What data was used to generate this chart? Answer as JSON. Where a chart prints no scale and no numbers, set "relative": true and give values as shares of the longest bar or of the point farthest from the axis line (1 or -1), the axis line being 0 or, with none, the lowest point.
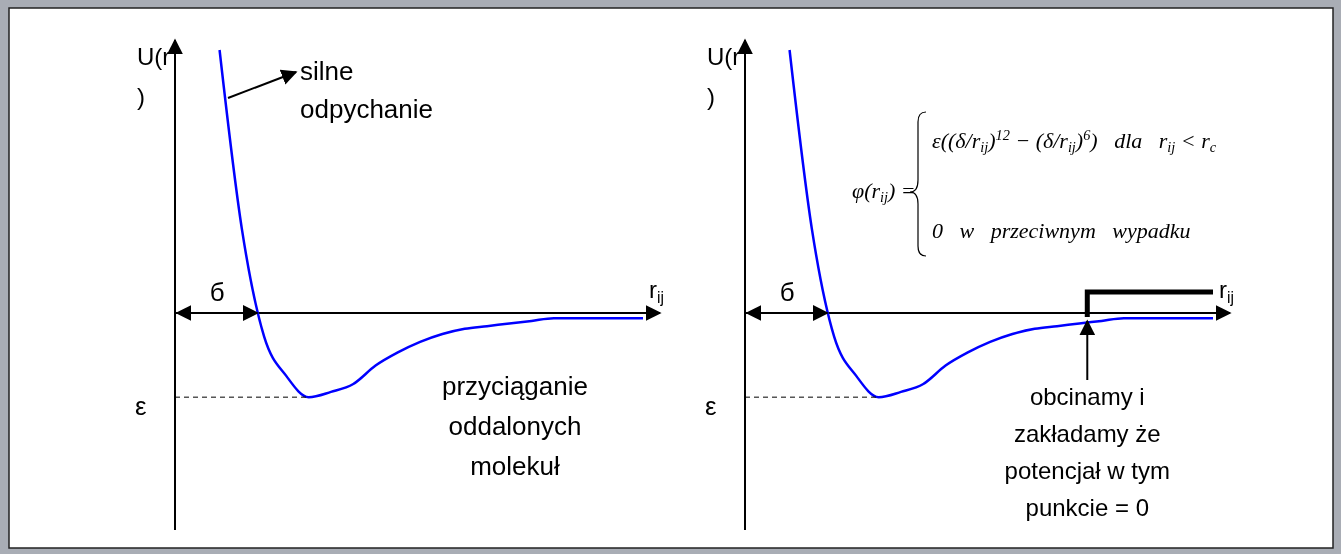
{
  "chart_data": [
    {
      "type": "line",
      "relative": true,
      "ylabel": "U(r)",
      "xlabel": "r$_{ij}$",
      "categories": [
        null,
        null,
        null,
        null,
        null,
        null,
        null,
        null,
        null,
        null,
        null,
        null,
        null,
        null,
        null,
        null,
        null,
        null,
        null,
        null,
        null,
        null
      ],
      "series": [
        {
          "color": "#0000ff",
          "values": [
            null,
            null,
            1,
            0.32,
            -0.09,
            -0.24,
            -0.32,
            -0.3,
            -0.27,
            -0.2,
            -0.15,
            -0.11,
            -0.08,
            -0.06,
            -0.05,
            -0.04,
            -0.03,
            -0.02,
            -0.02,
            -0.02,
            -0.02,
            -0.02
          ]
        }
      ],
      "annotations": [
        "silne odpychanie",
        "б",
        "ε",
        "przyciąganie oddalonych molekuł"
      ]
    },
    {
      "type": "line",
      "relative": true,
      "ylabel": "U(r)",
      "xlabel": "r$_{ij}$",
      "categories": [
        null,
        null,
        null,
        null,
        null,
        null,
        null,
        null,
        null,
        null,
        null,
        null,
        null,
        null,
        null,
        null,
        null,
        null,
        null,
        null,
        null,
        null
      ],
      "series": [
        {
          "color": "#0000ff",
          "values": [
            null,
            null,
            1,
            0.32,
            -0.09,
            -0.24,
            -0.32,
            -0.3,
            -0.27,
            -0.2,
            -0.15,
            -0.11,
            -0.08,
            -0.06,
            -0.05,
            -0.04,
            -0.03,
            -0.02,
            -0.02,
            -0.02,
            -0.02,
            -0.02
          ]
        }
      ],
      "annotations": [
        "φ(r$_{ij}$) =",
        "ε((δ/r$_{ij}$)$^{12}$ − (δ/r$_{ij}$)$^{6}$)   dla   r$_{ij}$ < r$_{c}$",
        "0   w   przeciwnym   wypadku",
        "б",
        "ε",
        "obcinamy i zakładamy że potencjał w tym punkcie = 0"
      ]
    }
  ]
}
